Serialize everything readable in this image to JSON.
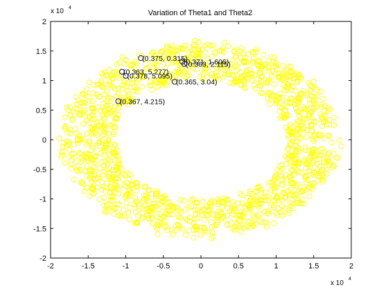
{
  "chart_data": {
    "type": "scatter",
    "title": "Variation of Theta1 and Theta2",
    "xlabel": "",
    "ylabel": "",
    "xlim": [
      -20000,
      20000
    ],
    "ylim": [
      -20000,
      20000
    ],
    "x_ticks": [
      -20000,
      -15000,
      -10000,
      -5000,
      0,
      5000,
      10000,
      15000,
      20000
    ],
    "y_ticks": [
      -20000,
      -15000,
      -10000,
      -5000,
      0,
      5000,
      10000,
      15000,
      20000
    ],
    "x_tick_labels": [
      "-2",
      "-1.5",
      "-1",
      "-0.5",
      "0",
      "0.5",
      "1",
      "1.5",
      "2"
    ],
    "y_tick_labels": [
      "-2",
      "-1.5",
      "-1",
      "-0.5",
      "0",
      "0.5",
      "1",
      "1.5",
      "2"
    ],
    "x_exponent_label": "x 10",
    "x_exponent_power": "4",
    "y_exponent_label": "x 10",
    "y_exponent_power": "4",
    "grid": false,
    "legend": "none",
    "series": [
      {
        "marker": "circle-open",
        "color": "#ffff00",
        "description_kind": "dense ring cloud",
        "ring": {
          "center": [
            0,
            0
          ],
          "inner_radius": 11500,
          "outer_radius": 18500,
          "count": 1400
        }
      },
      {
        "marker": "circle-open",
        "color": "#0000aa",
        "points": [
          {
            "x": -8000,
            "y": 13800,
            "label": "(0.375, 0.315)"
          },
          {
            "x": -2500,
            "y": 13200,
            "label": "(0.371, 1.606)"
          },
          {
            "x": -2200,
            "y": 12800,
            "label": "(0.363, 2.115)"
          },
          {
            "x": -10500,
            "y": 11500,
            "label": "(0.363, 5.277)"
          },
          {
            "x": -10000,
            "y": 10800,
            "label": "(0.378, 5.095)"
          },
          {
            "x": -3500,
            "y": 9800,
            "label": "(0.365, 3.04)"
          },
          {
            "x": -11000,
            "y": 6500,
            "label": "(0.367, 4.215)"
          }
        ]
      }
    ]
  }
}
